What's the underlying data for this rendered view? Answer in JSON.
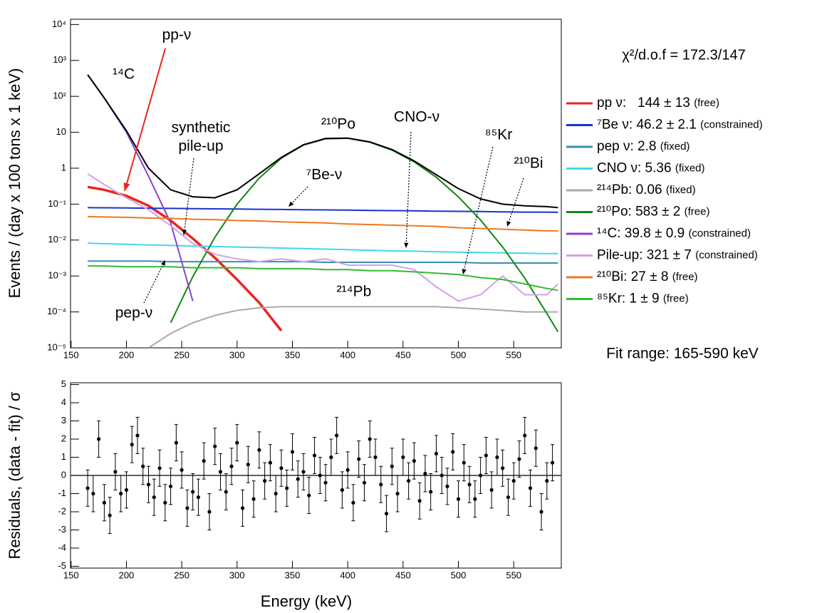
{
  "chart_data": [
    {
      "type": "line",
      "log_y": true,
      "ylabel": "Events / (day x 100 tons x 1 keV)",
      "fit_quality": "χ²/d.o.f = 172.3/147",
      "fit_range": "Fit range: 165-590 keV",
      "xlim": [
        149.5,
        593
      ],
      "xticks": [
        150,
        200,
        250,
        300,
        350,
        400,
        450,
        500,
        550
      ],
      "ylim": [
        1e-05,
        14000
      ],
      "yticks": [
        {
          "value": 1e-05,
          "label": "10⁻⁵"
        },
        {
          "value": 0.0001,
          "label": "10⁻⁴"
        },
        {
          "value": 0.001,
          "label": "10⁻³"
        },
        {
          "value": 0.01,
          "label": "10⁻²"
        },
        {
          "value": 0.1,
          "label": "10⁻¹"
        },
        1,
        10,
        {
          "value": 100,
          "label": "10²"
        },
        {
          "value": 1000,
          "label": "10³"
        },
        {
          "value": 10000,
          "label": "10⁴"
        }
      ],
      "x": [
        165,
        180,
        200,
        220,
        240,
        260,
        280,
        300,
        320,
        340,
        360,
        380,
        400,
        420,
        440,
        460,
        480,
        500,
        520,
        540,
        560,
        580,
        590
      ],
      "series": [
        {
          "name": "pp ν:   144 ± 13",
          "status": "(free)",
          "color": "#e8261f",
          "values": [
            0.3,
            0.25,
            0.17,
            0.09,
            0.035,
            0.011,
            0.0032,
            0.0008,
            0.00018,
            3e-05,
            null,
            null,
            null,
            null,
            null,
            null,
            null,
            null,
            null,
            null,
            null,
            null,
            null
          ]
        },
        {
          "name": "⁷Be ν: 46.2 ± 2.1",
          "status": "(constrained)",
          "color": "#1a33cc",
          "values": [
            0.08,
            0.079,
            0.078,
            0.077,
            0.076,
            0.075,
            0.074,
            0.073,
            0.072,
            0.071,
            0.07,
            0.069,
            0.068,
            0.067,
            0.066,
            0.065,
            0.064,
            0.063,
            0.062,
            0.061,
            0.06,
            0.06,
            0.059
          ]
        },
        {
          "name": "pep ν: 2.8",
          "status": "(fixed)",
          "color": "#3a8fb0",
          "values": [
            0.0026,
            0.0026,
            0.0026,
            0.0026,
            0.0025,
            0.0025,
            0.0025,
            0.0025,
            0.0025,
            0.0025,
            0.0025,
            0.0024,
            0.0024,
            0.0024,
            0.0024,
            0.0024,
            0.0024,
            0.0024,
            0.0023,
            0.0023,
            0.0023,
            0.0023,
            0.0023
          ]
        },
        {
          "name": "CNO ν: 5.36",
          "status": "(fixed)",
          "color": "#40d8f0",
          "values": [
            0.0082,
            0.0079,
            0.0076,
            0.0073,
            0.0071,
            0.0068,
            0.0066,
            0.0064,
            0.0062,
            0.006,
            0.0058,
            0.0056,
            0.0054,
            0.0052,
            0.005,
            0.0049,
            0.0047,
            0.0046,
            0.0045,
            0.0044,
            0.0043,
            0.0042,
            0.0042
          ]
        },
        {
          "name": "²¹⁴Pb: 0.06",
          "status": "(fixed)",
          "color": "#aaaaaa",
          "values": [
            null,
            null,
            null,
            1e-05,
            2.5e-05,
            5e-05,
            8e-05,
            0.00011,
            0.00013,
            0.00014,
            0.00014,
            0.00014,
            0.00014,
            0.00014,
            0.00014,
            0.00014,
            0.00014,
            0.00013,
            0.00012,
            0.00011,
            0.0001,
            0.0001,
            0.0001
          ]
        },
        {
          "name": "²¹⁰Po: 583 ± 2",
          "status": "(free)",
          "color": "#118811",
          "values": [
            null,
            null,
            null,
            null,
            5e-05,
            0.00096,
            0.012,
            0.1,
            0.53,
            1.9,
            4.4,
            6.6,
            6.8,
            5.3,
            3.2,
            1.5,
            0.56,
            0.16,
            0.036,
            0.0064,
            0.00087,
            9e-05,
            2.8e-05
          ]
        },
        {
          "name": "¹⁴C: 39.8 ± 0.9",
          "status": "(constrained)",
          "color": "#8a3fd6",
          "values": [
            400,
            90,
            10,
            0.6,
            0.03,
            0.0002,
            null,
            null,
            null,
            null,
            null,
            null,
            null,
            null,
            null,
            null,
            null,
            null,
            null,
            null,
            null,
            null,
            null
          ]
        },
        {
          "name": "Pile-up: 321 ± 7",
          "status": "(constrained)",
          "color": "#d4a0e8",
          "values": [
            0.7,
            0.35,
            0.15,
            0.07,
            0.025,
            0.008,
            0.004,
            0.003,
            0.0025,
            0.003,
            0.0025,
            0.003,
            0.002,
            0.002,
            0.002,
            0.0015,
            0.0005,
            0.0002,
            0.0003,
            0.001,
            0.0003,
            0.0003,
            0.0006
          ]
        },
        {
          "name": "²¹⁰Bi: 27 ± 8",
          "status": "(free)",
          "color": "#f07820",
          "values": [
            0.045,
            0.044,
            0.043,
            0.041,
            0.04,
            0.038,
            0.037,
            0.035,
            0.034,
            0.032,
            0.031,
            0.03,
            0.028,
            0.027,
            0.026,
            0.025,
            0.024,
            0.022,
            0.021,
            0.02,
            0.019,
            0.018,
            0.018
          ]
        },
        {
          "name": "⁸⁵Kr: 1 ± 9",
          "status": "(free)",
          "color": "#33bb33",
          "values": [
            0.0019,
            0.0019,
            0.0018,
            0.0018,
            0.0018,
            0.0017,
            0.0017,
            0.0017,
            0.0016,
            0.0016,
            0.0016,
            0.0015,
            0.0015,
            0.0014,
            0.0014,
            0.0013,
            0.0012,
            0.0011,
            0.0009,
            0.0008,
            0.0006,
            0.00045,
            0.0004
          ]
        },
        {
          "color": "#000000",
          "values": [
            400,
            90,
            11,
            1.0,
            0.25,
            0.16,
            0.15,
            0.25,
            0.7,
            2.0,
            4.5,
            6.7,
            6.9,
            5.4,
            3.3,
            1.6,
            0.66,
            0.27,
            0.14,
            0.1,
            0.09,
            0.085,
            0.08
          ]
        }
      ],
      "annotations": [
        {
          "text": "pp-ν",
          "color": "#e8261f"
        },
        {
          "text": "¹⁴C"
        },
        {
          "text": "synthetic"
        },
        {
          "text": "pile-up"
        },
        {
          "text": "²¹⁰Po"
        },
        {
          "text": "CNO-ν"
        },
        {
          "text": "⁸⁵Kr"
        },
        {
          "text": "²¹⁰Bi"
        },
        {
          "text": "⁷Be-ν"
        },
        {
          "text": "pep-ν"
        },
        {
          "text": "²¹⁴Pb"
        }
      ]
    },
    {
      "type": "scatter",
      "xlabel": "Energy (keV)",
      "ylabel": "Residuals, (data - fit) / σ",
      "xlim": [
        149.5,
        593
      ],
      "xticks": [
        150,
        200,
        250,
        300,
        350,
        400,
        450,
        500,
        550
      ],
      "ylim": [
        -5.1,
        5.1
      ],
      "yticks": [
        -5,
        -4,
        -3,
        -2,
        -1,
        0,
        1,
        2,
        3,
        4,
        5
      ],
      "reference_line": 0,
      "error": 1,
      "color": "#000000",
      "x": [
        165,
        170,
        175,
        180,
        185,
        190,
        195,
        200,
        205,
        210,
        215,
        220,
        225,
        230,
        235,
        240,
        245,
        250,
        255,
        260,
        265,
        270,
        275,
        280,
        285,
        290,
        295,
        300,
        305,
        310,
        315,
        320,
        325,
        330,
        335,
        340,
        345,
        350,
        355,
        360,
        365,
        370,
        375,
        380,
        385,
        390,
        395,
        400,
        405,
        410,
        415,
        420,
        425,
        430,
        435,
        440,
        445,
        450,
        455,
        460,
        465,
        470,
        475,
        480,
        485,
        490,
        495,
        500,
        505,
        510,
        515,
        520,
        525,
        530,
        535,
        540,
        545,
        550,
        555,
        560,
        565,
        570,
        575,
        580,
        585
      ],
      "values": [
        -0.7,
        -1.0,
        2.0,
        -1.5,
        -2.2,
        0.2,
        -1.0,
        -0.8,
        1.7,
        2.2,
        0.5,
        -0.5,
        -1.2,
        0.4,
        -1.5,
        -0.6,
        1.8,
        0.3,
        -1.8,
        -0.9,
        -1.2,
        0.8,
        -2.0,
        1.6,
        0.2,
        -0.9,
        0.5,
        1.8,
        -1.8,
        0.6,
        -1.3,
        1.4,
        -0.3,
        0.7,
        -1.0,
        0.4,
        -0.7,
        1.3,
        -0.2,
        0.2,
        -1.1,
        1.1,
        0.0,
        -0.4,
        1.0,
        2.2,
        -0.8,
        0.3,
        -1.5,
        0.9,
        -0.4,
        2.0,
        1.0,
        -0.5,
        -2.1,
        0.5,
        -1.0,
        1.0,
        -0.3,
        0.8,
        -1.4,
        0.1,
        -0.9,
        1.2,
        0.0,
        -0.6,
        1.3,
        -1.3,
        0.7,
        -0.5,
        -1.3,
        0.0,
        1.1,
        -0.8,
        1.0,
        0.4,
        -1.2,
        -0.3,
        0.9,
        2.2,
        -0.7,
        1.5,
        -2.0,
        -0.3,
        0.7
      ]
    }
  ]
}
